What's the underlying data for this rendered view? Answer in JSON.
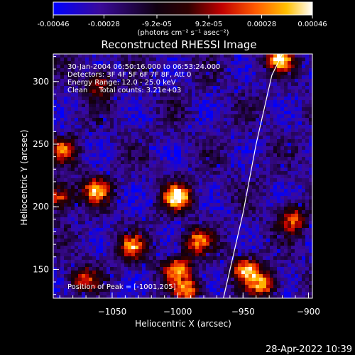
{
  "chart_data": {
    "type": "heatmap",
    "title": "Reconstructed RHESSI Image",
    "xlabel": "Heliocentric X (arcsec)",
    "ylabel": "Heliocentric Y (arcsec)",
    "xlim": [
      -1095,
      -897
    ],
    "ylim": [
      127,
      322
    ],
    "x_ticks": [
      -1050,
      -1000,
      -950,
      -900
    ],
    "y_ticks": [
      150,
      200,
      250,
      300
    ],
    "colorbar": {
      "range": [
        -0.00046,
        0.00046
      ],
      "tick_values": [
        -0.00046,
        -0.00028,
        -9.2e-05,
        9.2e-05,
        0.00028,
        0.00046
      ],
      "tick_labels": [
        "-0.00046",
        "-0.00028",
        "-9.2e-05",
        "9.2e-05",
        "0.00028",
        "0.00046"
      ],
      "unit_label": "(photons cm⁻² s⁻¹ asec⁻²)",
      "colormap": [
        "#0000ff",
        "#3a0a9a",
        "#000000",
        "#7a1000",
        "#ff3000",
        "#ff9a00",
        "#ffff90",
        "#ffffff"
      ]
    },
    "annotations": [
      "30-Jan-2004 06:50:16.000 to 06:53:24.000",
      "Detectors: 3F 4F 5F 6F 7F 8F, Att 0",
      "Energy Range: 12.0 - 25.0 keV",
      "Clean     Total counts: 3.21e+03"
    ],
    "peak_label": "Position of Peak = [-1001,205]",
    "limb": [
      [
        -965,
        127
      ],
      [
        -950,
        195
      ],
      [
        -940,
        250
      ],
      [
        -928,
        305
      ],
      [
        -920,
        322
      ]
    ],
    "bright_regions": [
      {
        "x": -1000,
        "y": 208,
        "peak": 1.0
      },
      {
        "x": -1062,
        "y": 213,
        "peak": 0.75
      },
      {
        "x": -1090,
        "y": 208,
        "peak": 0.7
      },
      {
        "x": -985,
        "y": 172,
        "peak": 0.7
      },
      {
        "x": -1035,
        "y": 168,
        "peak": 0.7
      },
      {
        "x": -1000,
        "y": 150,
        "peak": 0.75
      },
      {
        "x": -992,
        "y": 133,
        "peak": 0.7
      },
      {
        "x": -948,
        "y": 150,
        "peak": 0.75
      },
      {
        "x": -935,
        "y": 138,
        "peak": 0.75
      },
      {
        "x": -912,
        "y": 190,
        "peak": 0.7
      },
      {
        "x": -922,
        "y": 318,
        "peak": 0.9
      },
      {
        "x": -1060,
        "y": 298,
        "peak": 0.55
      },
      {
        "x": -1088,
        "y": 245,
        "peak": 0.6
      },
      {
        "x": -1072,
        "y": 142,
        "peak": 0.6
      }
    ]
  },
  "timestamp": "28-Apr-2022 10:39"
}
